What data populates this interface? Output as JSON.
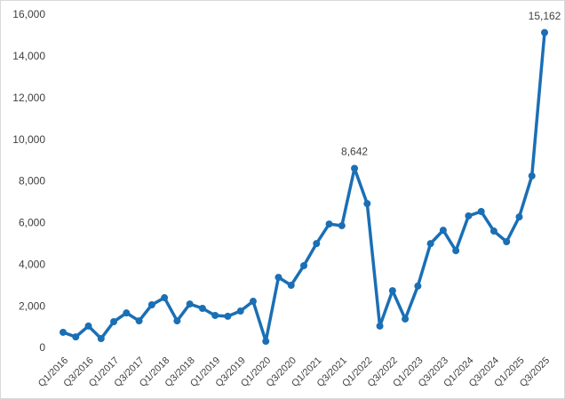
{
  "chart_data": {
    "type": "line",
    "categories": [
      "Q1/2016",
      null,
      "Q3/2016",
      null,
      "Q1/2017",
      null,
      "Q3/2017",
      null,
      "Q1/2018",
      null,
      "Q3/2018",
      null,
      "Q1/2019",
      null,
      "Q3/2019",
      null,
      "Q1/2020",
      null,
      "Q3/2020",
      null,
      "Q1/2021",
      null,
      "Q3/2021",
      null,
      "Q1/2022",
      null,
      "Q3/2022",
      null,
      "Q1/2023",
      null,
      "Q3/2023",
      null,
      "Q1/2024",
      null,
      "Q3/2024",
      null,
      "Q1/2025",
      null,
      "Q3/2025"
    ],
    "values": [
      770,
      550,
      1070,
      470,
      1280,
      1700,
      1320,
      2090,
      2430,
      1320,
      2130,
      1920,
      1580,
      1540,
      1790,
      2260,
      340,
      3410,
      3030,
      3970,
      5030,
      5970,
      5890,
      8642,
      6950,
      1070,
      2770,
      1410,
      2990,
      5030,
      5670,
      4690,
      6360,
      6570,
      5630,
      5120,
      6310,
      8280,
      15162
    ],
    "value_labels": [
      null,
      null,
      null,
      null,
      null,
      null,
      null,
      null,
      null,
      null,
      null,
      null,
      null,
      null,
      null,
      null,
      null,
      null,
      null,
      null,
      null,
      null,
      null,
      "8,642",
      null,
      null,
      null,
      null,
      null,
      null,
      null,
      null,
      null,
      null,
      null,
      null,
      null,
      null,
      "15,162"
    ],
    "color": "#1a6fb5",
    "ylim": [
      0,
      16000
    ],
    "yticks": [
      0,
      {
        "value": 2000,
        "label": "2,000"
      },
      {
        "value": 4000,
        "label": "4,000"
      },
      {
        "value": 6000,
        "label": "6,000"
      },
      {
        "value": 8000,
        "label": "8,000"
      },
      {
        "value": 10000,
        "label": "10,000"
      },
      {
        "value": 12000,
        "label": "12,000"
      },
      {
        "value": 14000,
        "label": "14,000"
      },
      {
        "value": 16000,
        "label": "16,000"
      }
    ],
    "grid": false
  }
}
